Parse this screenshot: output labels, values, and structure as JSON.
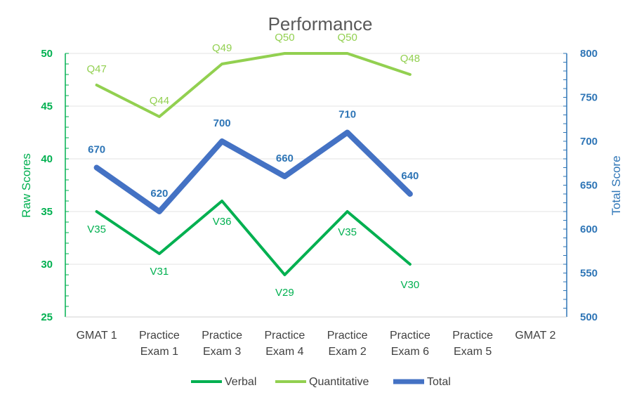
{
  "chart_data": {
    "type": "line",
    "title": "Performance",
    "categories": [
      [
        "GMAT 1"
      ],
      [
        "Practice",
        "Exam 1"
      ],
      [
        "Practice",
        "Exam 3"
      ],
      [
        "Practice",
        "Exam 4"
      ],
      [
        "Practice",
        "Exam 2"
      ],
      [
        "Practice",
        "Exam 6"
      ],
      [
        "Practice",
        "Exam 5"
      ],
      [
        "GMAT 2"
      ]
    ],
    "y_left": {
      "label": "Raw Scores",
      "min": 25,
      "max": 50,
      "step": 5,
      "color": "#00b050"
    },
    "y_right": {
      "label": "Total Score",
      "min": 500,
      "max": 800,
      "step": 50,
      "color": "#2e75b6"
    },
    "series": [
      {
        "name": "Verbal",
        "axis": "left",
        "color": "#00b050",
        "values": [
          35,
          31,
          36,
          29,
          35,
          30,
          null,
          null
        ],
        "labels": [
          "V35",
          "V31",
          "V36",
          "V29",
          "V35",
          "V30",
          "",
          ""
        ]
      },
      {
        "name": "Quantitative",
        "axis": "left",
        "color": "#92d050",
        "values": [
          47,
          44,
          49,
          50,
          50,
          48,
          null,
          null
        ],
        "labels": [
          "Q47",
          "Q44",
          "Q49",
          "Q50",
          "Q50",
          "Q48",
          "",
          ""
        ]
      },
      {
        "name": "Total",
        "axis": "right",
        "color": "#4472c4",
        "label_color": "#2e75b6",
        "values": [
          670,
          620,
          700,
          660,
          710,
          640,
          null,
          null
        ],
        "labels": [
          "670",
          "620",
          "700",
          "660",
          "710",
          "640",
          "",
          ""
        ]
      }
    ],
    "legend_position": "bottom"
  }
}
